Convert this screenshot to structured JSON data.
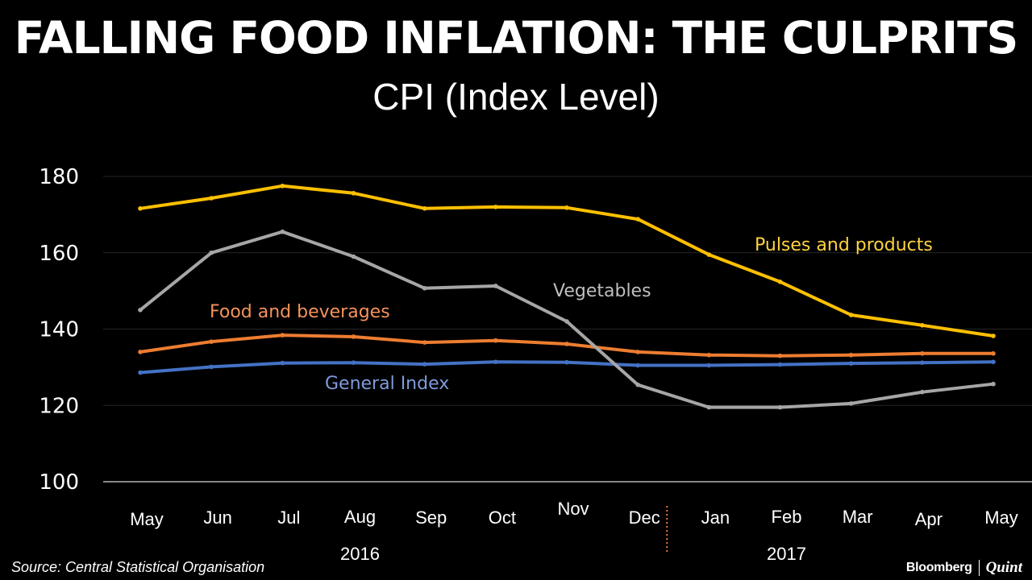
{
  "chart_data": {
    "type": "line",
    "title": "FALLING FOOD INFLATION: THE CULPRITS",
    "subtitle": "CPI (Index Level)",
    "xlabel": "",
    "ylabel": "",
    "ylim": [
      100,
      180
    ],
    "yticks": [
      "100",
      "120",
      "140",
      "160",
      "180"
    ],
    "grid": true,
    "categories": [
      "May",
      "Jun",
      "Jul",
      "Aug",
      "Sep",
      "Oct",
      "Nov",
      "Dec",
      "Jan",
      "Feb",
      "Mar",
      "Apr",
      "May"
    ],
    "year_labels": [
      {
        "label": "2016",
        "under": "Aug"
      },
      {
        "label": "2017",
        "under": "Feb"
      }
    ],
    "year_divider": {
      "between": [
        "Dec",
        "Jan"
      ],
      "color": "#E8762C"
    },
    "series": [
      {
        "name": "Pulses and products",
        "color": "#FFC000",
        "values": [
          171.6,
          174.3,
          177.5,
          175.6,
          171.6,
          172.0,
          171.8,
          168.8,
          159.5,
          152.4,
          143.7,
          141.0,
          138.2
        ]
      },
      {
        "name": "Vegetables",
        "color": "#A6A6A6",
        "values": [
          145.0,
          160.0,
          165.5,
          159.0,
          150.7,
          151.3,
          142.0,
          125.4,
          119.5,
          119.5,
          120.5,
          123.5,
          125.6
        ]
      },
      {
        "name": "Food and beverages",
        "color": "#ED7D31",
        "values": [
          134.0,
          136.7,
          138.4,
          138.0,
          136.5,
          137.0,
          136.1,
          134.0,
          133.2,
          133.0,
          133.2,
          133.6,
          133.6
        ]
      },
      {
        "name": "General Index",
        "color": "#4472C4",
        "values": [
          128.6,
          130.1,
          131.1,
          131.2,
          130.8,
          131.4,
          131.3,
          130.5,
          130.5,
          130.7,
          131.0,
          131.2,
          131.4
        ]
      }
    ],
    "legend": "inline labels"
  },
  "footer": {
    "source": "Source: Central Statistical Organisation",
    "brand_left": "Bloomberg",
    "brand_right": "Quint"
  }
}
